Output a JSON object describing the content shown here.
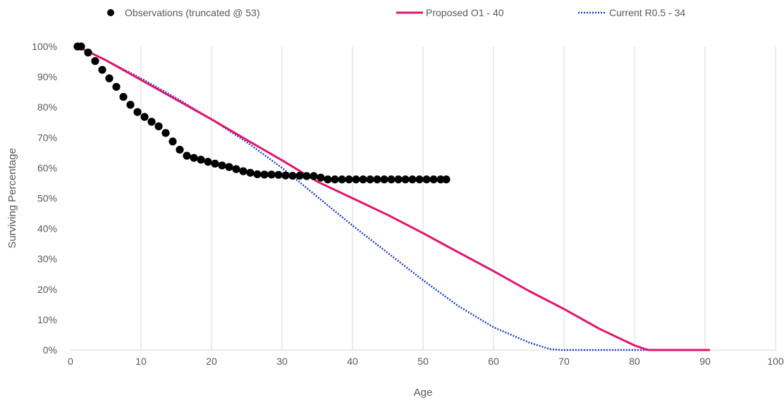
{
  "chart_data": {
    "type": "line",
    "title": "",
    "xlabel": "Age",
    "ylabel": "Surviving Percentage",
    "xlim": [
      0,
      100
    ],
    "ylim": [
      0,
      100
    ],
    "x_ticks": [
      "0",
      "10",
      "20",
      "30",
      "40",
      "50",
      "60",
      "70",
      "80",
      "90",
      "100"
    ],
    "y_ticks": [
      "0%",
      "10%",
      "20%",
      "30%",
      "40%",
      "50%",
      "60%",
      "70%",
      "80%",
      "90%",
      "100%"
    ],
    "grid": "vertical",
    "legend_position": "top",
    "series": [
      {
        "name": "Observations (truncated @ 53)",
        "style": "markers",
        "color": "#000000",
        "x": [
          1,
          1.5,
          2.5,
          3.5,
          4.5,
          5.5,
          6.5,
          7.5,
          8.5,
          9.5,
          10.5,
          11.5,
          12.5,
          13.5,
          14.5,
          15.5,
          16.5,
          17.5,
          18.5,
          19.5,
          20.5,
          21.5,
          22.5,
          23.5,
          24.5,
          25.5,
          26.5,
          27.5,
          28.5,
          29.5,
          30.5,
          31.5,
          32.5,
          33.5,
          34.5,
          35.5,
          36.5,
          37.5,
          38.5,
          39.5,
          40.5,
          41.5,
          42.5,
          43.5,
          44.5,
          45.5,
          46.5,
          47.5,
          48.5,
          49.5,
          50.5,
          51.5,
          52.5,
          53.3
        ],
        "y": [
          100,
          100,
          98.0,
          95.2,
          92.3,
          89.5,
          86.7,
          83.4,
          80.8,
          78.4,
          76.8,
          75.2,
          73.7,
          71.5,
          68.7,
          66.0,
          64.0,
          63.3,
          62.7,
          62.0,
          61.4,
          60.8,
          60.3,
          59.6,
          58.9,
          58.4,
          57.9,
          57.8,
          57.8,
          57.7,
          57.5,
          57.4,
          57.4,
          57.3,
          57.3,
          56.8,
          56.2,
          56.2,
          56.2,
          56.2,
          56.2,
          56.2,
          56.2,
          56.2,
          56.2,
          56.2,
          56.2,
          56.2,
          56.2,
          56.2,
          56.2,
          56.2,
          56.2,
          56.2
        ]
      },
      {
        "name": "Proposed O1 - 40",
        "style": "solid",
        "color": "#e0156e",
        "x": [
          1,
          5,
          10,
          15,
          20,
          25,
          30,
          35,
          40,
          45,
          50,
          55,
          60,
          65,
          70,
          75,
          80,
          81.5,
          82,
          85,
          90.7
        ],
        "y": [
          100,
          95.5,
          89.0,
          82.5,
          76.0,
          69.2,
          62.5,
          55.5,
          50.0,
          44.5,
          38.5,
          32.2,
          26.0,
          19.5,
          13.5,
          7.0,
          1.5,
          0.3,
          0,
          0,
          0
        ]
      },
      {
        "name": "Current R0.5 - 34",
        "style": "dotted",
        "color": "#1f3fc2",
        "x": [
          1,
          5,
          10,
          15,
          20,
          25,
          30,
          35,
          40,
          45,
          50,
          55,
          60,
          65,
          68,
          69.5,
          70,
          75,
          80,
          85,
          90.7
        ],
        "y": [
          100,
          95.5,
          89.5,
          83.0,
          76.0,
          68.5,
          60.0,
          50.5,
          41.0,
          32.0,
          23.0,
          14.5,
          7.5,
          2.5,
          0.3,
          0,
          0,
          0,
          0,
          0,
          0
        ]
      }
    ]
  }
}
